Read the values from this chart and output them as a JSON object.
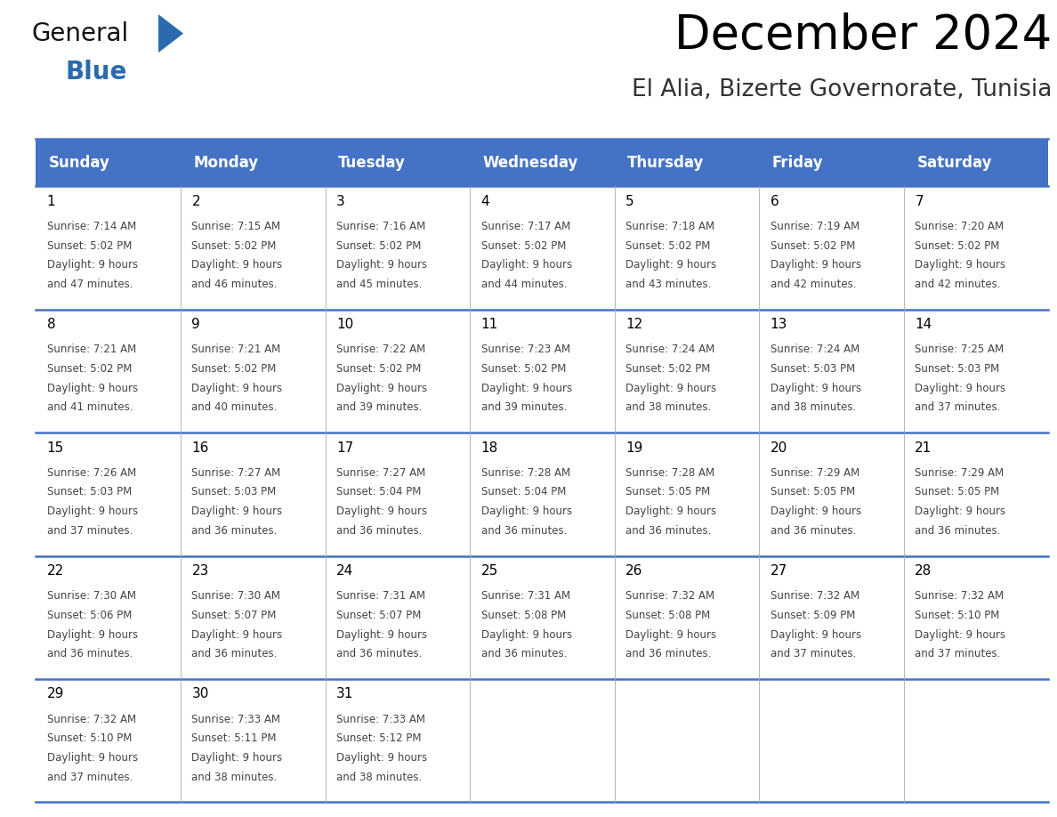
{
  "title": "December 2024",
  "subtitle": "El Alia, Bizerte Governorate, Tunisia",
  "header_bg": "#4472C4",
  "header_text_color": "#FFFFFF",
  "days_of_week": [
    "Sunday",
    "Monday",
    "Tuesday",
    "Wednesday",
    "Thursday",
    "Friday",
    "Saturday"
  ],
  "weeks": [
    [
      {
        "day": "1",
        "lines": [
          "Sunrise: 7:14 AM",
          "Sunset: 5:02 PM",
          "Daylight: 9 hours",
          "and 47 minutes."
        ]
      },
      {
        "day": "2",
        "lines": [
          "Sunrise: 7:15 AM",
          "Sunset: 5:02 PM",
          "Daylight: 9 hours",
          "and 46 minutes."
        ]
      },
      {
        "day": "3",
        "lines": [
          "Sunrise: 7:16 AM",
          "Sunset: 5:02 PM",
          "Daylight: 9 hours",
          "and 45 minutes."
        ]
      },
      {
        "day": "4",
        "lines": [
          "Sunrise: 7:17 AM",
          "Sunset: 5:02 PM",
          "Daylight: 9 hours",
          "and 44 minutes."
        ]
      },
      {
        "day": "5",
        "lines": [
          "Sunrise: 7:18 AM",
          "Sunset: 5:02 PM",
          "Daylight: 9 hours",
          "and 43 minutes."
        ]
      },
      {
        "day": "6",
        "lines": [
          "Sunrise: 7:19 AM",
          "Sunset: 5:02 PM",
          "Daylight: 9 hours",
          "and 42 minutes."
        ]
      },
      {
        "day": "7",
        "lines": [
          "Sunrise: 7:20 AM",
          "Sunset: 5:02 PM",
          "Daylight: 9 hours",
          "and 42 minutes."
        ]
      }
    ],
    [
      {
        "day": "8",
        "lines": [
          "Sunrise: 7:21 AM",
          "Sunset: 5:02 PM",
          "Daylight: 9 hours",
          "and 41 minutes."
        ]
      },
      {
        "day": "9",
        "lines": [
          "Sunrise: 7:21 AM",
          "Sunset: 5:02 PM",
          "Daylight: 9 hours",
          "and 40 minutes."
        ]
      },
      {
        "day": "10",
        "lines": [
          "Sunrise: 7:22 AM",
          "Sunset: 5:02 PM",
          "Daylight: 9 hours",
          "and 39 minutes."
        ]
      },
      {
        "day": "11",
        "lines": [
          "Sunrise: 7:23 AM",
          "Sunset: 5:02 PM",
          "Daylight: 9 hours",
          "and 39 minutes."
        ]
      },
      {
        "day": "12",
        "lines": [
          "Sunrise: 7:24 AM",
          "Sunset: 5:02 PM",
          "Daylight: 9 hours",
          "and 38 minutes."
        ]
      },
      {
        "day": "13",
        "lines": [
          "Sunrise: 7:24 AM",
          "Sunset: 5:03 PM",
          "Daylight: 9 hours",
          "and 38 minutes."
        ]
      },
      {
        "day": "14",
        "lines": [
          "Sunrise: 7:25 AM",
          "Sunset: 5:03 PM",
          "Daylight: 9 hours",
          "and 37 minutes."
        ]
      }
    ],
    [
      {
        "day": "15",
        "lines": [
          "Sunrise: 7:26 AM",
          "Sunset: 5:03 PM",
          "Daylight: 9 hours",
          "and 37 minutes."
        ]
      },
      {
        "day": "16",
        "lines": [
          "Sunrise: 7:27 AM",
          "Sunset: 5:03 PM",
          "Daylight: 9 hours",
          "and 36 minutes."
        ]
      },
      {
        "day": "17",
        "lines": [
          "Sunrise: 7:27 AM",
          "Sunset: 5:04 PM",
          "Daylight: 9 hours",
          "and 36 minutes."
        ]
      },
      {
        "day": "18",
        "lines": [
          "Sunrise: 7:28 AM",
          "Sunset: 5:04 PM",
          "Daylight: 9 hours",
          "and 36 minutes."
        ]
      },
      {
        "day": "19",
        "lines": [
          "Sunrise: 7:28 AM",
          "Sunset: 5:05 PM",
          "Daylight: 9 hours",
          "and 36 minutes."
        ]
      },
      {
        "day": "20",
        "lines": [
          "Sunrise: 7:29 AM",
          "Sunset: 5:05 PM",
          "Daylight: 9 hours",
          "and 36 minutes."
        ]
      },
      {
        "day": "21",
        "lines": [
          "Sunrise: 7:29 AM",
          "Sunset: 5:05 PM",
          "Daylight: 9 hours",
          "and 36 minutes."
        ]
      }
    ],
    [
      {
        "day": "22",
        "lines": [
          "Sunrise: 7:30 AM",
          "Sunset: 5:06 PM",
          "Daylight: 9 hours",
          "and 36 minutes."
        ]
      },
      {
        "day": "23",
        "lines": [
          "Sunrise: 7:30 AM",
          "Sunset: 5:07 PM",
          "Daylight: 9 hours",
          "and 36 minutes."
        ]
      },
      {
        "day": "24",
        "lines": [
          "Sunrise: 7:31 AM",
          "Sunset: 5:07 PM",
          "Daylight: 9 hours",
          "and 36 minutes."
        ]
      },
      {
        "day": "25",
        "lines": [
          "Sunrise: 7:31 AM",
          "Sunset: 5:08 PM",
          "Daylight: 9 hours",
          "and 36 minutes."
        ]
      },
      {
        "day": "26",
        "lines": [
          "Sunrise: 7:32 AM",
          "Sunset: 5:08 PM",
          "Daylight: 9 hours",
          "and 36 minutes."
        ]
      },
      {
        "day": "27",
        "lines": [
          "Sunrise: 7:32 AM",
          "Sunset: 5:09 PM",
          "Daylight: 9 hours",
          "and 37 minutes."
        ]
      },
      {
        "day": "28",
        "lines": [
          "Sunrise: 7:32 AM",
          "Sunset: 5:10 PM",
          "Daylight: 9 hours",
          "and 37 minutes."
        ]
      }
    ],
    [
      {
        "day": "29",
        "lines": [
          "Sunrise: 7:32 AM",
          "Sunset: 5:10 PM",
          "Daylight: 9 hours",
          "and 37 minutes."
        ]
      },
      {
        "day": "30",
        "lines": [
          "Sunrise: 7:33 AM",
          "Sunset: 5:11 PM",
          "Daylight: 9 hours",
          "and 38 minutes."
        ]
      },
      {
        "day": "31",
        "lines": [
          "Sunrise: 7:33 AM",
          "Sunset: 5:12 PM",
          "Daylight: 9 hours",
          "and 38 minutes."
        ]
      },
      null,
      null,
      null,
      null
    ]
  ],
  "logo_general_color": "#111111",
  "logo_blue_color": "#2a6aad",
  "grid_line_color": "#4472C4",
  "title_fontsize": 38,
  "subtitle_fontsize": 19,
  "header_fontsize": 12,
  "day_num_fontsize": 11,
  "cell_text_fontsize": 8.5
}
